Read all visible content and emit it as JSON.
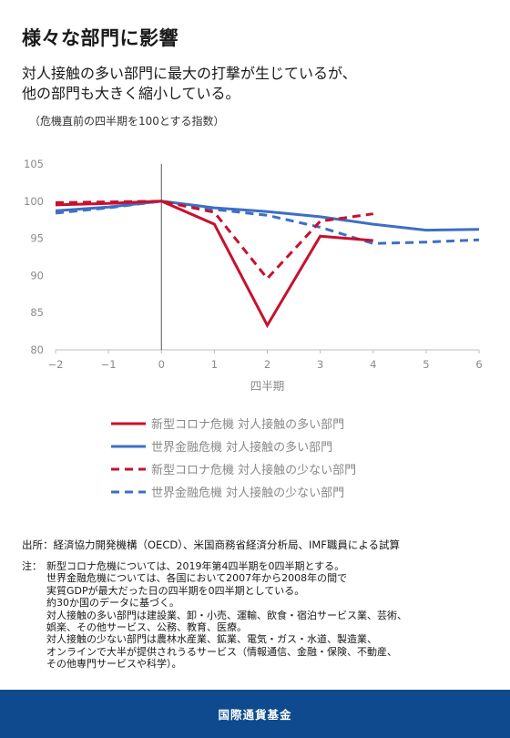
{
  "title": "様々な部門に影響",
  "subtitle_lines": [
    "対人接触の多い部門に最大の打撃が生じているが、",
    "他の部門も大きく縮小している。"
  ],
  "unit_note": "（危機直前の四半期を100とする指数）",
  "chart_data": {
    "type": "line",
    "xlabel": "四半期",
    "ylabel": "",
    "xlim": [
      -2,
      6
    ],
    "ylim": [
      80,
      105
    ],
    "x_ticks": [
      -2,
      -1,
      0,
      1,
      2,
      3,
      4,
      5,
      6
    ],
    "y_ticks": [
      80,
      85,
      90,
      95,
      100,
      105
    ],
    "grid": false,
    "series": [
      {
        "name": "新型コロナ危機  対人接触の多い部門",
        "color": "#c8102e",
        "dash": false,
        "x": [
          -2,
          -1,
          0,
          1,
          2,
          3,
          4
        ],
        "y": [
          99.5,
          99.7,
          100,
          96.9,
          83.3,
          95.3,
          94.7
        ]
      },
      {
        "name": "世界金融危機  対人接触の多い部門",
        "color": "#3d6fc4",
        "dash": false,
        "x": [
          -2,
          -1,
          0,
          1,
          2,
          3,
          4,
          5,
          6
        ],
        "y": [
          98.7,
          99.2,
          100,
          99.1,
          98.6,
          97.9,
          96.9,
          96.1,
          96.2
        ]
      },
      {
        "name": "新型コロナ危機  対人接触の少ない部門",
        "color": "#c8102e",
        "dash": true,
        "x": [
          -2,
          -1,
          0,
          1,
          2,
          3,
          4
        ],
        "y": [
          99.8,
          99.9,
          100,
          98.5,
          89.6,
          97.3,
          98.3
        ]
      },
      {
        "name": "世界金融危機  対人接触の少ない部門",
        "color": "#3d6fc4",
        "dash": true,
        "x": [
          -2,
          -1,
          0,
          1,
          2,
          3,
          4,
          5,
          6
        ],
        "y": [
          98.4,
          99.1,
          100,
          98.9,
          98.1,
          96.5,
          94.3,
          94.5,
          94.8
        ]
      }
    ]
  },
  "source": "出所：経済協力開発機構（OECD）、米国商務省経済分析局、IMF職員による試算",
  "notes_prefix": "注：",
  "notes_lines": [
    "新型コロナ危機については、2019年第4四半期を0四半期とする。",
    "世界金融危機については、各国において2007年から2008年の間で",
    "実質GDPが最大だった日の四半期を0四半期としている。",
    "約30か国のデータに基づく。",
    "対人接触の多い部門は建設業、卸・小売、運輸、飲食・宿泊サービス業、芸術、",
    "娯楽、その他サービス、公務、教育、医療。",
    "対人接触の少ない部門は農林水産業、鉱業、電気・ガス・水道、製造業、",
    "オンラインで大半が提供されうるサービス（情報通信、金融・保険、不動産、",
    "その他専門サービスや科学）。"
  ],
  "footer": "国際通貨基金"
}
